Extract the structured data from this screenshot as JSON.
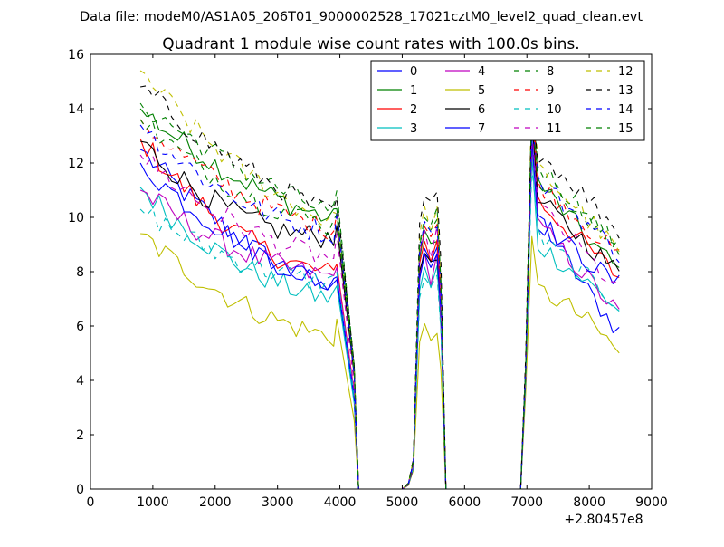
{
  "chart_data": {
    "type": "line",
    "suptitle": "Data file: modeM0/AS1A05_206T01_9000002528_17021cztM0_level2_quad_clean.evt",
    "title": "Quadrant 1 module wise count rates with 100.0s bins.",
    "xlabel": "",
    "ylabel": "",
    "x_offset_label": "+2.80457e8",
    "xlim": [
      0,
      9000
    ],
    "ylim": [
      0,
      16
    ],
    "x_ticks": [
      0,
      1000,
      2000,
      3000,
      4000,
      5000,
      6000,
      7000,
      8000,
      9000
    ],
    "y_ticks": [
      0,
      2,
      4,
      6,
      8,
      10,
      12,
      14,
      16
    ],
    "x_tick_labels": [
      "0",
      "1000",
      "2000",
      "3000",
      "4000",
      "5000",
      "6000",
      "7000",
      "8000",
      "9000"
    ],
    "y_tick_labels": [
      "0",
      "2",
      "4",
      "6",
      "8",
      "10",
      "12",
      "14",
      "16"
    ],
    "legend_position": "top-right",
    "legend_columns": 4,
    "segments": [
      {
        "start": 800,
        "end": 4200,
        "points": 35
      },
      {
        "start": 5100,
        "end": 5700,
        "points": 7
      },
      {
        "start": 6900,
        "end": 8500,
        "points": 17
      }
    ],
    "series": [
      {
        "name": "0",
        "color": "#0000ff",
        "dash": false,
        "seg1": [
          12.5,
          8.7,
          7.3
        ],
        "seg2": [
          0.8,
          8.9,
          8.4
        ],
        "seg3": [
          4.0,
          13.6,
          10.1,
          7.6,
          5.8
        ]
      },
      {
        "name": "1",
        "color": "#008000",
        "dash": false,
        "seg1": [
          14.0,
          11.0,
          9.9
        ],
        "seg2": [
          1.0,
          9.4,
          9.0
        ],
        "seg3": [
          4.3,
          14.3,
          11.3,
          9.6,
          8.0
        ]
      },
      {
        "name": "2",
        "color": "#ff0000",
        "dash": false,
        "seg1": [
          12.9,
          8.5,
          7.9
        ],
        "seg2": [
          0.8,
          9.2,
          8.3
        ],
        "seg3": [
          4.1,
          14.0,
          10.6,
          9.2,
          7.8
        ]
      },
      {
        "name": "3",
        "color": "#00bfbf",
        "dash": false,
        "seg1": [
          11.1,
          7.6,
          7.0
        ],
        "seg2": [
          0.9,
          8.1,
          7.4
        ],
        "seg3": [
          3.9,
          12.2,
          9.0,
          7.9,
          6.6
        ]
      },
      {
        "name": "4",
        "color": "#bf00bf",
        "dash": false,
        "seg1": [
          11.0,
          8.2,
          7.8
        ],
        "seg2": [
          0.9,
          8.6,
          7.7
        ],
        "seg3": [
          4.0,
          12.8,
          9.7,
          8.2,
          6.4
        ]
      },
      {
        "name": "5",
        "color": "#bfbf00",
        "dash": false,
        "seg1": [
          9.4,
          6.3,
          5.6
        ],
        "seg2": [
          0.7,
          6.0,
          5.5
        ],
        "seg3": [
          3.5,
          9.0,
          7.3,
          6.7,
          5.0
        ]
      },
      {
        "name": "6",
        "color": "#000000",
        "dash": false,
        "seg1": [
          12.8,
          9.2,
          9.3
        ],
        "seg2": [
          0.8,
          8.7,
          8.4
        ],
        "seg3": [
          4.2,
          13.3,
          10.6,
          9.4,
          7.9
        ]
      },
      {
        "name": "7",
        "color": "#0000ff",
        "dash": false,
        "seg1": [
          12.0,
          8.6,
          7.5
        ],
        "seg2": [
          0.8,
          8.7,
          8.2
        ],
        "seg3": [
          4.0,
          13.0,
          9.9,
          8.6,
          7.5
        ]
      },
      {
        "name": "8",
        "color": "#008000",
        "dash": true,
        "seg1": [
          14.2,
          11.6,
          10.1
        ],
        "seg2": [
          1.0,
          9.8,
          9.5
        ],
        "seg3": [
          4.4,
          14.3,
          11.9,
          10.5,
          8.9
        ]
      },
      {
        "name": "9",
        "color": "#ff0000",
        "dash": true,
        "seg1": [
          13.6,
          10.3,
          9.6
        ],
        "seg2": [
          0.9,
          9.7,
          9.3
        ],
        "seg3": [
          4.3,
          14.1,
          11.3,
          10.0,
          8.5
        ]
      },
      {
        "name": "10",
        "color": "#00bfbf",
        "dash": true,
        "seg1": [
          10.3,
          7.9,
          7.6
        ],
        "seg2": [
          0.8,
          7.8,
          7.3
        ],
        "seg3": [
          3.9,
          12.0,
          9.3,
          8.0,
          6.8
        ]
      },
      {
        "name": "11",
        "color": "#bf00bf",
        "dash": true,
        "seg1": [
          12.3,
          9.1,
          8.5
        ],
        "seg2": [
          0.9,
          9.4,
          8.7
        ],
        "seg3": [
          4.2,
          13.4,
          10.4,
          9.0,
          7.2
        ]
      },
      {
        "name": "12",
        "color": "#bfbf00",
        "dash": true,
        "seg1": [
          15.4,
          11.2,
          9.8
        ],
        "seg2": [
          1.1,
          10.3,
          9.6
        ],
        "seg3": [
          4.6,
          14.5,
          11.8,
          10.3,
          8.7
        ]
      },
      {
        "name": "13",
        "color": "#000000",
        "dash": true,
        "seg1": [
          14.8,
          11.6,
          10.1
        ],
        "seg2": [
          1.1,
          10.7,
          10.5
        ],
        "seg3": [
          4.8,
          14.5,
          12.4,
          11.1,
          9.5
        ]
      },
      {
        "name": "14",
        "color": "#0000ff",
        "dash": true,
        "seg1": [
          13.4,
          10.0,
          9.4
        ],
        "seg2": [
          1.0,
          9.9,
          9.4
        ],
        "seg3": [
          4.4,
          13.5,
          11.3,
          10.1,
          8.7
        ]
      },
      {
        "name": "15",
        "color": "#008000",
        "dash": true,
        "seg1": [
          13.6,
          10.4,
          9.7
        ],
        "seg2": [
          1.0,
          10.1,
          9.6
        ],
        "seg3": [
          4.3,
          14.2,
          11.5,
          10.2,
          8.8
        ]
      }
    ]
  }
}
